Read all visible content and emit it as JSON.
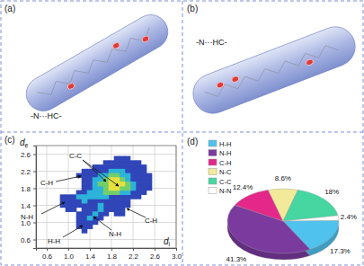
{
  "panels": [
    {
      "label": "(a)",
      "annotation": "-N···HC-"
    },
    {
      "label": "(b)",
      "annotation": "-N···HC-"
    }
  ],
  "chart_data": [
    {
      "type": "scatter",
      "title": "(c)",
      "xlabel": "di",
      "ylabel": "de",
      "xlim": [
        0.4,
        3.0
      ],
      "ylim": [
        0.4,
        2.8
      ],
      "xticks": [
        0.6,
        {
          "value": 1.0,
          "label": "1.0"
        },
        1.4,
        1.8,
        2.2,
        2.6,
        {
          "value": 3.0,
          "label": "3.0"
        }
      ],
      "yticks": [
        0.6,
        {
          "value": 1.0,
          "label": "1.0"
        },
        1.4,
        1.8,
        2.2,
        2.6
      ],
      "grid": true,
      "marker": "square",
      "series": [
        {
          "color": "#3046b8",
          "x": [
            1.9,
            2.0,
            2.1,
            1.7,
            1.8,
            1.9,
            2.0,
            2.1,
            2.2,
            2.3,
            1.5,
            1.6,
            1.7,
            1.8,
            1.9,
            2.0,
            2.1,
            2.2,
            2.3,
            2.4,
            1.3,
            1.4,
            1.5,
            1.6,
            1.7,
            2.1,
            2.2,
            2.3,
            2.4,
            1.2,
            1.3,
            1.4,
            1.5,
            2.2,
            2.3,
            2.4,
            2.5,
            1.3,
            1.4,
            2.2,
            2.3,
            2.4,
            2.5,
            1.3,
            1.4,
            2.3,
            2.4,
            2.5,
            1.3,
            1.4,
            2.3,
            2.4,
            2.5,
            1.2,
            1.3,
            2.2,
            2.3,
            2.4,
            0.9,
            1.0,
            1.1,
            1.8,
            1.9,
            2.0,
            2.1,
            2.2,
            2.3,
            0.9,
            1.0,
            1.1,
            1.2,
            1.4,
            1.5,
            1.6,
            1.7,
            1.8,
            1.9,
            2.0,
            2.1,
            0.9,
            1.0,
            1.1,
            1.2,
            1.3,
            1.4,
            1.5,
            1.7,
            1.8,
            1.9,
            2.0,
            2.1,
            1.0,
            1.1,
            1.3,
            1.4,
            1.5,
            1.7,
            1.8,
            1.9,
            2.0,
            1.2,
            1.3,
            1.4,
            1.6,
            1.7,
            1.9,
            2.0,
            1.2,
            1.3,
            1.5,
            1.6,
            1.2,
            1.3,
            1.4,
            1.5,
            1.2,
            1.3,
            1.4,
            1.3
          ],
          "values": [
            2.5,
            2.5,
            2.5,
            2.4,
            2.4,
            2.4,
            2.4,
            2.4,
            2.4,
            2.4,
            2.3,
            2.3,
            2.3,
            2.3,
            2.3,
            2.3,
            2.3,
            2.3,
            2.3,
            2.3,
            2.2,
            2.2,
            2.2,
            2.2,
            2.2,
            2.2,
            2.2,
            2.2,
            2.2,
            2.1,
            2.1,
            2.1,
            2.1,
            2.1,
            2.1,
            2.1,
            2.1,
            2.0,
            2.0,
            2.0,
            2.0,
            2.0,
            2.0,
            1.9,
            1.9,
            1.9,
            1.9,
            1.9,
            1.8,
            1.8,
            1.8,
            1.8,
            1.8,
            1.7,
            1.7,
            1.7,
            1.7,
            1.7,
            1.6,
            1.6,
            1.6,
            1.6,
            1.6,
            1.6,
            1.6,
            1.6,
            1.6,
            1.5,
            1.5,
            1.5,
            1.5,
            1.5,
            1.5,
            1.5,
            1.5,
            1.5,
            1.5,
            1.5,
            1.5,
            1.4,
            1.4,
            1.4,
            1.4,
            1.4,
            1.4,
            1.4,
            1.4,
            1.4,
            1.4,
            1.4,
            1.4,
            1.3,
            1.3,
            1.3,
            1.3,
            1.3,
            1.3,
            1.3,
            1.3,
            1.3,
            1.2,
            1.2,
            1.2,
            1.2,
            1.2,
            1.2,
            1.2,
            1.1,
            1.1,
            1.1,
            1.1,
            1.0,
            1.0,
            1.0,
            1.0,
            0.9,
            0.9,
            0.9,
            0.8
          ]
        },
        {
          "color": "#2bb3d9",
          "x": [
            1.8,
            1.9,
            2.0,
            1.6,
            1.7,
            2.0,
            2.1,
            1.5,
            1.6,
            2.1,
            1.5,
            2.2,
            1.5,
            1.6,
            2.2,
            1.4,
            1.5,
            1.6,
            2.0,
            2.1,
            1.2,
            1.3,
            1.4,
            1.5,
            1.6,
            1.7,
            1.3,
            1.6,
            1.6,
            1.5,
            1.4
          ],
          "values": [
            2.2,
            2.2,
            2.2,
            2.1,
            2.1,
            2.1,
            2.1,
            2.0,
            2.0,
            2.0,
            1.9,
            1.9,
            1.8,
            1.8,
            1.8,
            1.7,
            1.7,
            1.7,
            1.7,
            1.7,
            1.6,
            1.6,
            1.6,
            1.6,
            1.6,
            1.6,
            1.5,
            1.4,
            1.3,
            1.2,
            1.1
          ]
        },
        {
          "color": "#72cf6a",
          "x": [
            1.8,
            1.9,
            1.7,
            2.0,
            1.6,
            1.7,
            2.1,
            1.7,
            2.0,
            2.1,
            1.7,
            1.8,
            1.9
          ],
          "values": [
            2.1,
            2.1,
            2.0,
            2.0,
            1.9,
            1.9,
            1.9,
            1.8,
            1.8,
            1.8,
            1.7,
            1.7,
            1.7
          ]
        },
        {
          "color": "#e6e040",
          "x": [
            1.8,
            1.9,
            1.8,
            1.9,
            2.0,
            1.8,
            1.9
          ],
          "values": [
            2.0,
            2.0,
            1.9,
            1.9,
            1.9,
            1.8,
            1.8
          ]
        }
      ],
      "annotations": [
        "C-C",
        "C-H",
        "N-H",
        "H-H",
        "N-H",
        "C-H"
      ]
    },
    {
      "type": "pie",
      "title": "(d)",
      "categories": [
        "H-H",
        "N-H",
        "C-H",
        "N-C",
        "C-C",
        "N-N"
      ],
      "values": [
        17.3,
        41.3,
        12.4,
        8.6,
        18,
        2.4
      ],
      "value_labels": [
        "17.3%",
        "41.3%",
        "12.4%",
        "8.6%",
        "18%",
        "2.4%"
      ],
      "colors": [
        "#4fc3ee",
        "#7a3a9e",
        "#e3288a",
        "#f2ea9a",
        "#45d6a2",
        "#ffffff"
      ],
      "data_labels": true,
      "legend": "top-left"
    }
  ]
}
